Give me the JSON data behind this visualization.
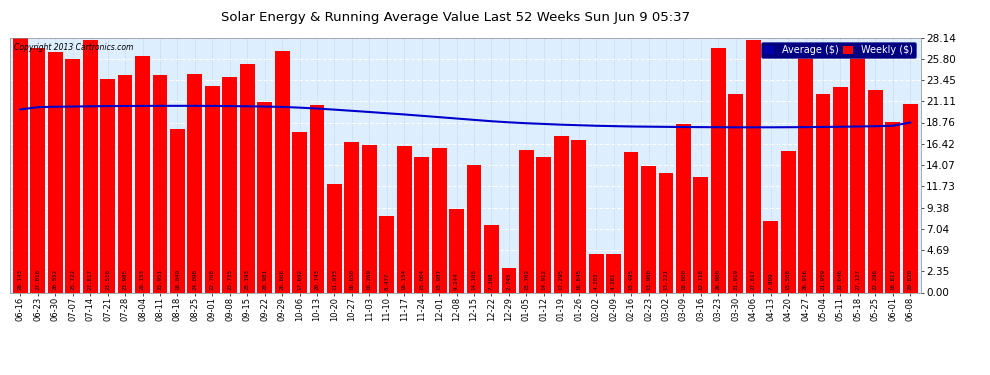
{
  "title": "Solar Energy & Running Average Value Last 52 Weeks Sun Jun 9 05:37",
  "copyright": "Copyright 2013 Cartronics.com",
  "bar_color": "#FF0000",
  "avg_line_color": "#0000CC",
  "background_color": "#FFFFFF",
  "plot_bg_color": "#DDEEFF",
  "grid_color": "#AAAACC",
  "ylim": [
    0,
    28.14
  ],
  "yticks": [
    0.0,
    2.35,
    4.69,
    7.04,
    9.38,
    11.73,
    14.07,
    16.42,
    18.76,
    21.11,
    23.45,
    25.8,
    28.14
  ],
  "legend_avg_color": "#0000AA",
  "legend_weekly_color": "#FF0000",
  "categories": [
    "06-16",
    "06-23",
    "06-30",
    "07-07",
    "07-14",
    "07-21",
    "07-28",
    "08-04",
    "08-11",
    "08-18",
    "08-25",
    "09-01",
    "09-08",
    "09-15",
    "09-22",
    "09-29",
    "10-06",
    "10-13",
    "10-20",
    "10-27",
    "11-03",
    "11-10",
    "11-17",
    "11-24",
    "12-01",
    "12-08",
    "12-15",
    "12-22",
    "12-29",
    "01-05",
    "01-12",
    "01-19",
    "01-26",
    "02-02",
    "02-09",
    "02-16",
    "02-23",
    "03-02",
    "03-09",
    "03-16",
    "03-23",
    "03-30",
    "04-06",
    "04-13",
    "04-20",
    "04-27",
    "05-04",
    "05-11",
    "05-18",
    "05-25",
    "06-01",
    "06-08"
  ],
  "weekly_values": [
    28.143,
    27.018,
    26.552,
    25.722,
    27.817,
    23.518,
    23.985,
    26.153,
    23.951,
    18.049,
    24.098,
    22.768,
    23.735,
    25.193,
    20.981,
    26.666,
    17.692,
    20.743,
    11.933,
    16.65,
    16.269,
    8.477,
    16.154,
    15.004,
    15.987,
    9.244,
    14.105,
    7.398,
    2.745,
    15.762,
    14.912,
    17.295,
    16.845,
    4.203,
    4.281,
    15.495,
    13.96,
    13.221,
    18.6,
    12.718,
    26.98,
    21.919,
    27.817,
    7.899,
    15.568,
    26.916,
    21.959,
    22.646,
    27.127,
    22.296,
    18.817,
    20.82
  ],
  "avg_values": [
    20.2,
    20.45,
    20.5,
    20.52,
    20.55,
    20.57,
    20.58,
    20.59,
    20.6,
    20.6,
    20.6,
    20.59,
    20.57,
    20.55,
    20.52,
    20.48,
    20.4,
    20.3,
    20.18,
    20.05,
    19.92,
    19.78,
    19.65,
    19.5,
    19.35,
    19.2,
    19.05,
    18.9,
    18.78,
    18.68,
    18.6,
    18.52,
    18.46,
    18.4,
    18.36,
    18.32,
    18.3,
    18.28,
    18.26,
    18.25,
    18.24,
    18.23,
    18.23,
    18.23,
    18.24,
    18.25,
    18.27,
    18.29,
    18.32,
    18.35,
    18.4,
    18.76
  ]
}
